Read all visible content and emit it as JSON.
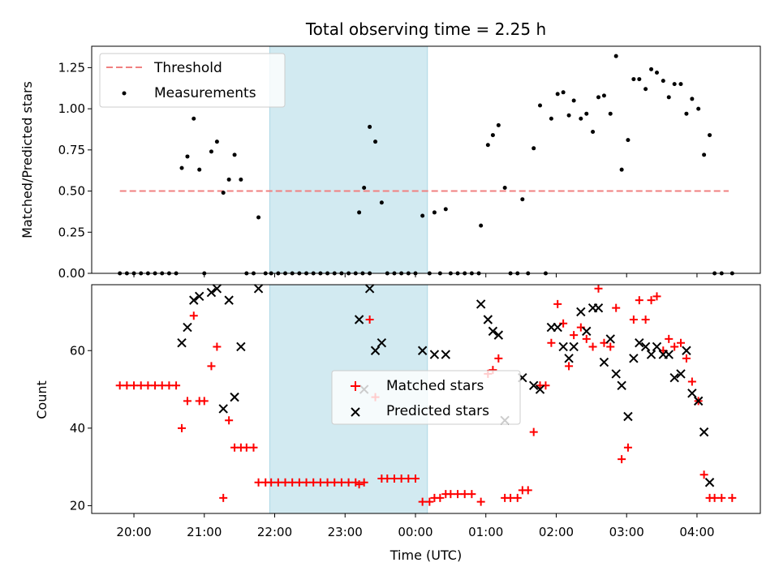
{
  "title": "Total observing time = 2.25 h",
  "chart_data": [
    {
      "type": "scatter",
      "panel": "top",
      "ylabel": "Matched/Predicted stars",
      "ylim": [
        0,
        1.38
      ],
      "yticks": [
        0.0,
        0.25,
        0.5,
        0.75,
        1.0,
        1.25
      ],
      "ytick_labels": [
        "0.00",
        "0.25",
        "0.50",
        "0.75",
        "1.00",
        "1.25"
      ],
      "legend_position": "top-left",
      "threshold": {
        "name": "Threshold",
        "y": 0.5,
        "x_range": [
          -0.2,
          8.45
        ],
        "color": "#f08080"
      },
      "shaded_interval": {
        "x_range": [
          1.93,
          4.17
        ],
        "color": "#add8e6"
      },
      "series": [
        {
          "name": "Measurements",
          "color": "#000000",
          "marker": "dot",
          "points": [
            [
              -0.2,
              0
            ],
            [
              -0.1,
              0
            ],
            [
              0,
              0
            ],
            [
              0.1,
              0
            ],
            [
              0.2,
              0
            ],
            [
              0.3,
              0
            ],
            [
              0.4,
              0
            ],
            [
              0.5,
              0
            ],
            [
              0.6,
              0
            ],
            [
              0.68,
              0.64
            ],
            [
              0.76,
              0.71
            ],
            [
              0.85,
              0.94
            ],
            [
              0.93,
              0.63
            ],
            [
              1.0,
              0
            ],
            [
              1.1,
              0.74
            ],
            [
              1.18,
              0.8
            ],
            [
              1.27,
              0.49
            ],
            [
              1.35,
              0.57
            ],
            [
              1.43,
              0.72
            ],
            [
              1.52,
              0.57
            ],
            [
              1.6,
              0
            ],
            [
              1.7,
              0
            ],
            [
              1.77,
              0.34
            ],
            [
              1.87,
              0
            ],
            [
              1.95,
              0
            ],
            [
              2.05,
              0
            ],
            [
              2.15,
              0
            ],
            [
              2.25,
              0
            ],
            [
              2.35,
              0
            ],
            [
              2.45,
              0
            ],
            [
              2.55,
              0
            ],
            [
              2.65,
              0
            ],
            [
              2.75,
              0
            ],
            [
              2.85,
              0
            ],
            [
              2.95,
              0
            ],
            [
              3.05,
              0
            ],
            [
              3.15,
              0
            ],
            [
              3.25,
              0
            ],
            [
              3.35,
              0
            ],
            [
              3.2,
              0.37
            ],
            [
              3.27,
              0.52
            ],
            [
              3.35,
              0.89
            ],
            [
              3.43,
              0.8
            ],
            [
              3.52,
              0.43
            ],
            [
              3.6,
              0
            ],
            [
              3.7,
              0
            ],
            [
              3.8,
              0
            ],
            [
              3.9,
              0
            ],
            [
              4.0,
              0
            ],
            [
              4.1,
              0.35
            ],
            [
              4.27,
              0.37
            ],
            [
              4.43,
              0.39
            ],
            [
              4.2,
              0
            ],
            [
              4.35,
              0
            ],
            [
              4.5,
              0
            ],
            [
              4.6,
              0
            ],
            [
              4.7,
              0
            ],
            [
              4.8,
              0
            ],
            [
              4.9,
              0
            ],
            [
              4.93,
              0.29
            ],
            [
              5.03,
              0.78
            ],
            [
              5.1,
              0.84
            ],
            [
              5.18,
              0.9
            ],
            [
              5.27,
              0.52
            ],
            [
              5.35,
              0
            ],
            [
              5.45,
              0
            ],
            [
              5.52,
              0.45
            ],
            [
              5.6,
              0
            ],
            [
              5.68,
              0.76
            ],
            [
              5.77,
              1.02
            ],
            [
              5.85,
              0
            ],
            [
              5.93,
              0.94
            ],
            [
              6.02,
              1.09
            ],
            [
              6.1,
              1.1
            ],
            [
              6.18,
              0.96
            ],
            [
              6.25,
              1.05
            ],
            [
              6.35,
              0.94
            ],
            [
              6.43,
              0.97
            ],
            [
              6.52,
              0.86
            ],
            [
              6.6,
              1.07
            ],
            [
              6.68,
              1.08
            ],
            [
              6.77,
              0.97
            ],
            [
              6.85,
              1.32
            ],
            [
              6.93,
              0.63
            ],
            [
              7.02,
              0.81
            ],
            [
              7.1,
              1.18
            ],
            [
              7.18,
              1.18
            ],
            [
              7.27,
              1.12
            ],
            [
              7.35,
              1.24
            ],
            [
              7.43,
              1.22
            ],
            [
              7.52,
              1.17
            ],
            [
              7.6,
              1.07
            ],
            [
              7.68,
              1.15
            ],
            [
              7.77,
              1.15
            ],
            [
              7.85,
              0.97
            ],
            [
              7.93,
              1.06
            ],
            [
              8.02,
              1.0
            ],
            [
              8.1,
              0.72
            ],
            [
              8.18,
              0.84
            ],
            [
              8.25,
              0
            ],
            [
              8.35,
              0
            ],
            [
              8.5,
              0
            ]
          ]
        }
      ]
    },
    {
      "type": "scatter",
      "panel": "bottom",
      "xlabel": "Time (UTC)",
      "ylabel": "Count",
      "ylim": [
        18,
        77
      ],
      "yticks": [
        20,
        40,
        60
      ],
      "xticks": [
        0,
        1,
        2,
        3,
        4,
        5,
        6,
        7,
        8
      ],
      "xtick_labels": [
        "20:00",
        "21:00",
        "22:00",
        "23:00",
        "00:00",
        "01:00",
        "02:00",
        "03:00",
        "04:00"
      ],
      "legend_position": "center",
      "shaded_interval": {
        "x_range": [
          1.93,
          4.17
        ],
        "color": "#add8e6"
      },
      "series": [
        {
          "name": "Matched stars",
          "color": "#ff0000",
          "marker": "plus",
          "points": [
            [
              -0.2,
              51
            ],
            [
              -0.1,
              51
            ],
            [
              0,
              51
            ],
            [
              0.1,
              51
            ],
            [
              0.2,
              51
            ],
            [
              0.3,
              51
            ],
            [
              0.4,
              51
            ],
            [
              0.5,
              51
            ],
            [
              0.6,
              51
            ],
            [
              0.68,
              40
            ],
            [
              0.76,
              47
            ],
            [
              0.85,
              69
            ],
            [
              0.93,
              47
            ],
            [
              1.0,
              47
            ],
            [
              1.1,
              56
            ],
            [
              1.18,
              61
            ],
            [
              1.27,
              22
            ],
            [
              1.35,
              42
            ],
            [
              1.43,
              35
            ],
            [
              1.52,
              35
            ],
            [
              1.6,
              35
            ],
            [
              1.7,
              35
            ],
            [
              1.77,
              26
            ],
            [
              1.87,
              26
            ],
            [
              1.95,
              26
            ],
            [
              2.05,
              26
            ],
            [
              2.15,
              26
            ],
            [
              2.25,
              26
            ],
            [
              2.35,
              26
            ],
            [
              2.45,
              26
            ],
            [
              2.55,
              26
            ],
            [
              2.65,
              26
            ],
            [
              2.75,
              26
            ],
            [
              2.85,
              26
            ],
            [
              2.95,
              26
            ],
            [
              3.05,
              26
            ],
            [
              3.15,
              26
            ],
            [
              3.2,
              25.5
            ],
            [
              3.27,
              26
            ],
            [
              3.35,
              68
            ],
            [
              3.43,
              48
            ],
            [
              3.52,
              27
            ],
            [
              3.6,
              27
            ],
            [
              3.7,
              27
            ],
            [
              3.8,
              27
            ],
            [
              3.9,
              27
            ],
            [
              4.0,
              27
            ],
            [
              4.1,
              21
            ],
            [
              4.2,
              21
            ],
            [
              4.27,
              22
            ],
            [
              4.35,
              22
            ],
            [
              4.43,
              23
            ],
            [
              4.5,
              23
            ],
            [
              4.6,
              23
            ],
            [
              4.7,
              23
            ],
            [
              4.8,
              23
            ],
            [
              4.93,
              21
            ],
            [
              5.03,
              54
            ],
            [
              5.1,
              55
            ],
            [
              5.18,
              58
            ],
            [
              5.27,
              22
            ],
            [
              5.35,
              22
            ],
            [
              5.45,
              22
            ],
            [
              5.52,
              24
            ],
            [
              5.6,
              24
            ],
            [
              5.68,
              39
            ],
            [
              5.77,
              51
            ],
            [
              5.85,
              51
            ],
            [
              5.93,
              62
            ],
            [
              6.02,
              72
            ],
            [
              6.1,
              67
            ],
            [
              6.18,
              56
            ],
            [
              6.25,
              64
            ],
            [
              6.35,
              66
            ],
            [
              6.43,
              63
            ],
            [
              6.52,
              61
            ],
            [
              6.6,
              76
            ],
            [
              6.68,
              62
            ],
            [
              6.77,
              61
            ],
            [
              6.85,
              71
            ],
            [
              6.93,
              32
            ],
            [
              7.02,
              35
            ],
            [
              7.1,
              68
            ],
            [
              7.18,
              73
            ],
            [
              7.27,
              68
            ],
            [
              7.35,
              73
            ],
            [
              7.43,
              74
            ],
            [
              7.52,
              60
            ],
            [
              7.6,
              63
            ],
            [
              7.68,
              61
            ],
            [
              7.77,
              62
            ],
            [
              7.85,
              58
            ],
            [
              7.93,
              52
            ],
            [
              8.02,
              47
            ],
            [
              8.1,
              28
            ],
            [
              8.18,
              22
            ],
            [
              8.25,
              22
            ],
            [
              8.35,
              22
            ],
            [
              8.5,
              22
            ]
          ]
        },
        {
          "name": "Predicted stars",
          "color": "#000000",
          "marker": "x",
          "points": [
            [
              0.68,
              62
            ],
            [
              0.76,
              66
            ],
            [
              0.85,
              73
            ],
            [
              0.93,
              74
            ],
            [
              1.1,
              75
            ],
            [
              1.18,
              76
            ],
            [
              1.27,
              45
            ],
            [
              1.35,
              73
            ],
            [
              1.43,
              48
            ],
            [
              1.52,
              61
            ],
            [
              1.77,
              76
            ],
            [
              3.2,
              68
            ],
            [
              3.27,
              50
            ],
            [
              3.35,
              76
            ],
            [
              3.43,
              60
            ],
            [
              3.52,
              62
            ],
            [
              4.1,
              60
            ],
            [
              4.27,
              59
            ],
            [
              4.43,
              59
            ],
            [
              4.93,
              72
            ],
            [
              5.03,
              68
            ],
            [
              5.1,
              65
            ],
            [
              5.18,
              64
            ],
            [
              5.27,
              42
            ],
            [
              5.52,
              53
            ],
            [
              5.68,
              51
            ],
            [
              5.77,
              50
            ],
            [
              5.93,
              66
            ],
            [
              6.02,
              66
            ],
            [
              6.1,
              61
            ],
            [
              6.18,
              58
            ],
            [
              6.25,
              61
            ],
            [
              6.35,
              70
            ],
            [
              6.43,
              65
            ],
            [
              6.52,
              71
            ],
            [
              6.6,
              71
            ],
            [
              6.68,
              57
            ],
            [
              6.77,
              63
            ],
            [
              6.85,
              54
            ],
            [
              6.93,
              51
            ],
            [
              7.02,
              43
            ],
            [
              7.1,
              58
            ],
            [
              7.18,
              62
            ],
            [
              7.27,
              61
            ],
            [
              7.35,
              59
            ],
            [
              7.43,
              61
            ],
            [
              7.52,
              59
            ],
            [
              7.6,
              59
            ],
            [
              7.68,
              53
            ],
            [
              7.77,
              54
            ],
            [
              7.85,
              60
            ],
            [
              7.93,
              49
            ],
            [
              8.02,
              47
            ],
            [
              8.1,
              39
            ],
            [
              8.18,
              26
            ]
          ]
        }
      ]
    }
  ]
}
